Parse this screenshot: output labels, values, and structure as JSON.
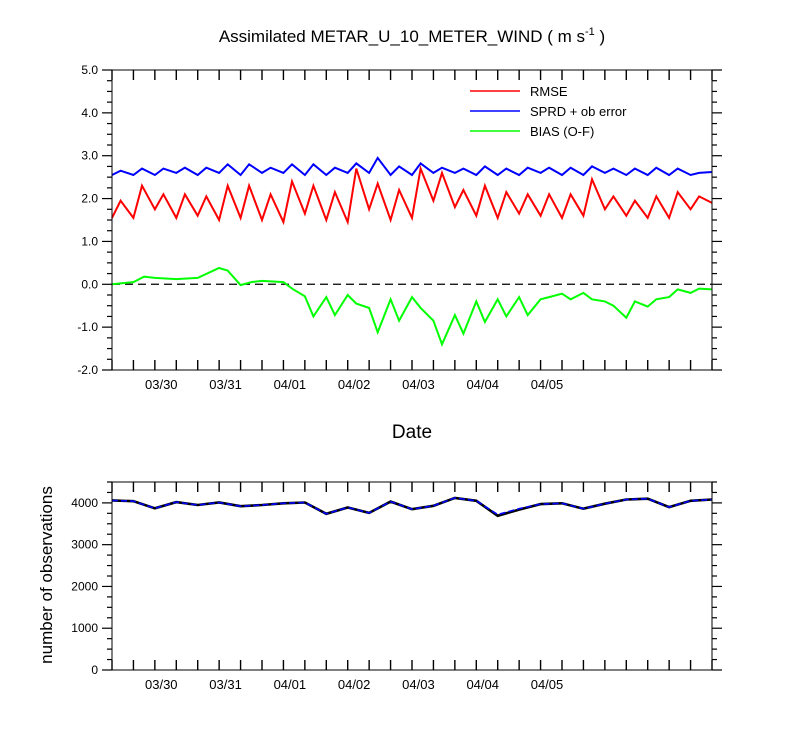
{
  "chart_data": [
    {
      "type": "line",
      "title": "Assimilated METAR_U_10_METER_WIND ( m s",
      "title_unit_exponent": "-1",
      "title_close": " )",
      "xlabel": "Date",
      "ylabel": "",
      "x_tick_labels": [
        "03/30",
        "03/31",
        "04/01",
        "04/02",
        "04/03",
        "04/04",
        "04/05"
      ],
      "y_tick_labels": [
        "5.0",
        "4.0",
        "3.0",
        "2.0",
        "1.0",
        "0.0",
        "-1.0",
        "-2.0"
      ],
      "ylim": [
        -2.0,
        5.0
      ],
      "zero_line": true,
      "legend_position": "top-right",
      "colors": {
        "rmse": "#ff0000",
        "sprd": "#0000ff",
        "bias": "#00ff00",
        "zero": "#000000"
      },
      "series": [
        {
          "name": "RMSE",
          "x": [
            0,
            0.4,
            1,
            1.4,
            2,
            2.4,
            3,
            3.4,
            4,
            4.4,
            5,
            5.4,
            6,
            6.4,
            7,
            7.4,
            8,
            8.4,
            9,
            9.4,
            10,
            10.4,
            11,
            11.4,
            12,
            12.4,
            13,
            13.4,
            14,
            14.4,
            15,
            15.4,
            16,
            16.4,
            17,
            17.4,
            18,
            18.4,
            19,
            19.4,
            20,
            20.4,
            21,
            21.4,
            22,
            22.4,
            23,
            23.4,
            24,
            24.4,
            25,
            25.4,
            26,
            26.4,
            27,
            27.4,
            28
          ],
          "values": [
            1.55,
            1.95,
            1.55,
            2.3,
            1.75,
            2.1,
            1.55,
            2.1,
            1.6,
            2.05,
            1.5,
            2.3,
            1.55,
            2.3,
            1.5,
            2.1,
            1.45,
            2.4,
            1.65,
            2.3,
            1.5,
            2.15,
            1.45,
            2.7,
            1.75,
            2.35,
            1.5,
            2.2,
            1.55,
            2.7,
            1.95,
            2.6,
            1.8,
            2.2,
            1.6,
            2.3,
            1.55,
            2.15,
            1.65,
            2.1,
            1.6,
            2.1,
            1.55,
            2.1,
            1.6,
            2.45,
            1.75,
            2.05,
            1.6,
            1.95,
            1.55,
            2.05,
            1.55,
            2.15,
            1.75,
            2.05,
            1.9
          ]
        },
        {
          "name": "SPRD + ob error",
          "x": [
            0,
            0.4,
            1,
            1.4,
            2,
            2.4,
            3,
            3.4,
            4,
            4.4,
            5,
            5.4,
            6,
            6.4,
            7,
            7.4,
            8,
            8.4,
            9,
            9.4,
            10,
            10.4,
            11,
            11.4,
            12,
            12.4,
            13,
            13.4,
            14,
            14.4,
            15,
            15.4,
            16,
            16.4,
            17,
            17.4,
            18,
            18.4,
            19,
            19.4,
            20,
            20.4,
            21,
            21.4,
            22,
            22.4,
            23,
            23.4,
            24,
            24.4,
            25,
            25.4,
            26,
            26.4,
            27,
            27.4,
            28
          ],
          "values": [
            2.55,
            2.65,
            2.55,
            2.7,
            2.55,
            2.7,
            2.6,
            2.72,
            2.55,
            2.72,
            2.6,
            2.8,
            2.55,
            2.8,
            2.6,
            2.72,
            2.6,
            2.8,
            2.55,
            2.8,
            2.55,
            2.72,
            2.6,
            2.82,
            2.6,
            2.95,
            2.55,
            2.75,
            2.55,
            2.82,
            2.6,
            2.72,
            2.6,
            2.7,
            2.55,
            2.75,
            2.55,
            2.7,
            2.55,
            2.72,
            2.6,
            2.72,
            2.55,
            2.72,
            2.55,
            2.75,
            2.6,
            2.7,
            2.55,
            2.7,
            2.55,
            2.72,
            2.55,
            2.7,
            2.55,
            2.6,
            2.62
          ]
        },
        {
          "name": "BIAS (O-F)",
          "x": [
            0,
            1,
            1.5,
            2,
            3,
            4,
            5,
            5.4,
            6,
            6.5,
            7,
            8,
            8.4,
            9,
            9.4,
            10,
            10.4,
            11,
            11.4,
            12,
            12.4,
            13,
            13.4,
            14,
            14.4,
            15,
            15.4,
            16,
            16.4,
            17,
            17.4,
            18,
            18.4,
            19,
            19.4,
            20,
            20.4,
            21,
            21.4,
            22,
            22.4,
            23,
            23.4,
            24,
            24.4,
            25,
            25.4,
            26,
            26.4,
            27,
            27.4,
            28
          ],
          "values": [
            0.0,
            0.05,
            0.18,
            0.15,
            0.12,
            0.15,
            0.38,
            0.32,
            -0.02,
            0.05,
            0.08,
            0.05,
            -0.1,
            -0.28,
            -0.75,
            -0.3,
            -0.72,
            -0.25,
            -0.45,
            -0.55,
            -1.12,
            -0.35,
            -0.85,
            -0.3,
            -0.55,
            -0.85,
            -1.4,
            -0.72,
            -1.15,
            -0.4,
            -0.88,
            -0.35,
            -0.75,
            -0.3,
            -0.72,
            -0.35,
            -0.3,
            -0.22,
            -0.35,
            -0.2,
            -0.35,
            -0.4,
            -0.5,
            -0.78,
            -0.4,
            -0.52,
            -0.35,
            -0.3,
            -0.12,
            -0.2,
            -0.1,
            -0.12
          ]
        }
      ]
    },
    {
      "type": "line",
      "title": "",
      "xlabel": "",
      "ylabel": "number of observations",
      "x_tick_labels": [
        "03/30",
        "03/31",
        "04/01",
        "04/02",
        "04/03",
        "04/04",
        "04/05"
      ],
      "y_tick_labels": [
        "4000",
        "3000",
        "2000",
        "1000",
        "0"
      ],
      "ylim": [
        0,
        4500
      ],
      "colors": {
        "used": "#000000",
        "possible": "#0000ff"
      },
      "series": [
        {
          "x": [
            0,
            1,
            2,
            3,
            4,
            5,
            6,
            7,
            8,
            9,
            10,
            11,
            12,
            13,
            14,
            15,
            16,
            17,
            18,
            19,
            20,
            21,
            22,
            23,
            24,
            25,
            26,
            27,
            28
          ],
          "values": [
            4060,
            4040,
            3870,
            4020,
            3950,
            4010,
            3920,
            3950,
            3990,
            4010,
            3740,
            3890,
            3760,
            4030,
            3850,
            3930,
            4120,
            4050,
            3690,
            3840,
            3970,
            3990,
            3860,
            3980,
            4080,
            4100,
            3900,
            4050,
            4080
          ]
        },
        {
          "x": [
            0,
            1,
            2,
            3,
            4,
            5,
            6,
            7,
            8,
            9,
            10,
            11,
            12,
            13,
            14,
            15,
            16,
            17,
            18,
            19,
            20,
            21,
            22,
            23,
            24,
            25,
            26,
            27,
            28
          ],
          "values": [
            4060,
            4040,
            3870,
            4020,
            3950,
            4010,
            3920,
            3950,
            3990,
            4010,
            3740,
            3890,
            3760,
            4030,
            3850,
            3930,
            4120,
            4050,
            3720,
            3860,
            3970,
            3990,
            3860,
            3980,
            4080,
            4100,
            3900,
            4050,
            4080
          ]
        }
      ]
    }
  ]
}
